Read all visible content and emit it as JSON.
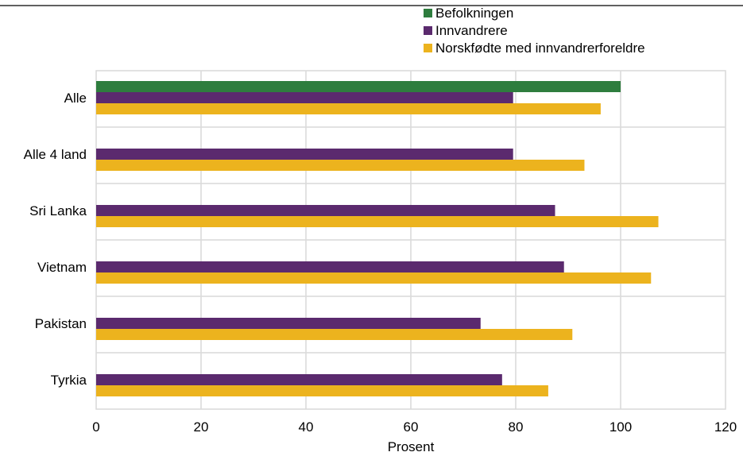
{
  "chart_data": {
    "type": "bar",
    "orientation": "horizontal",
    "categories": [
      "Alle",
      "Alle 4 land",
      "Sri Lanka",
      "Vietnam",
      "Pakistan",
      "Tyrkia"
    ],
    "series": [
      {
        "name": "Befolkningen",
        "color": "#2e7d3e",
        "values": [
          100,
          null,
          null,
          null,
          null,
          null
        ]
      },
      {
        "name": "Innvandrere",
        "color": "#5b2a6e",
        "values": [
          79.5,
          79.5,
          87.5,
          89.2,
          73.3,
          77.4
        ]
      },
      {
        "name": "Norskfødte med innvandrerforeldre",
        "color": "#ecb31e",
        "values": [
          96.2,
          93.1,
          107.2,
          105.8,
          90.8,
          86.2
        ]
      }
    ],
    "xlabel": "Prosent",
    "ylabel": "",
    "xlim": [
      0,
      120
    ],
    "xticks": [
      0,
      20,
      40,
      60,
      80,
      100,
      120
    ],
    "grid": true,
    "legend_position": "top-right"
  }
}
